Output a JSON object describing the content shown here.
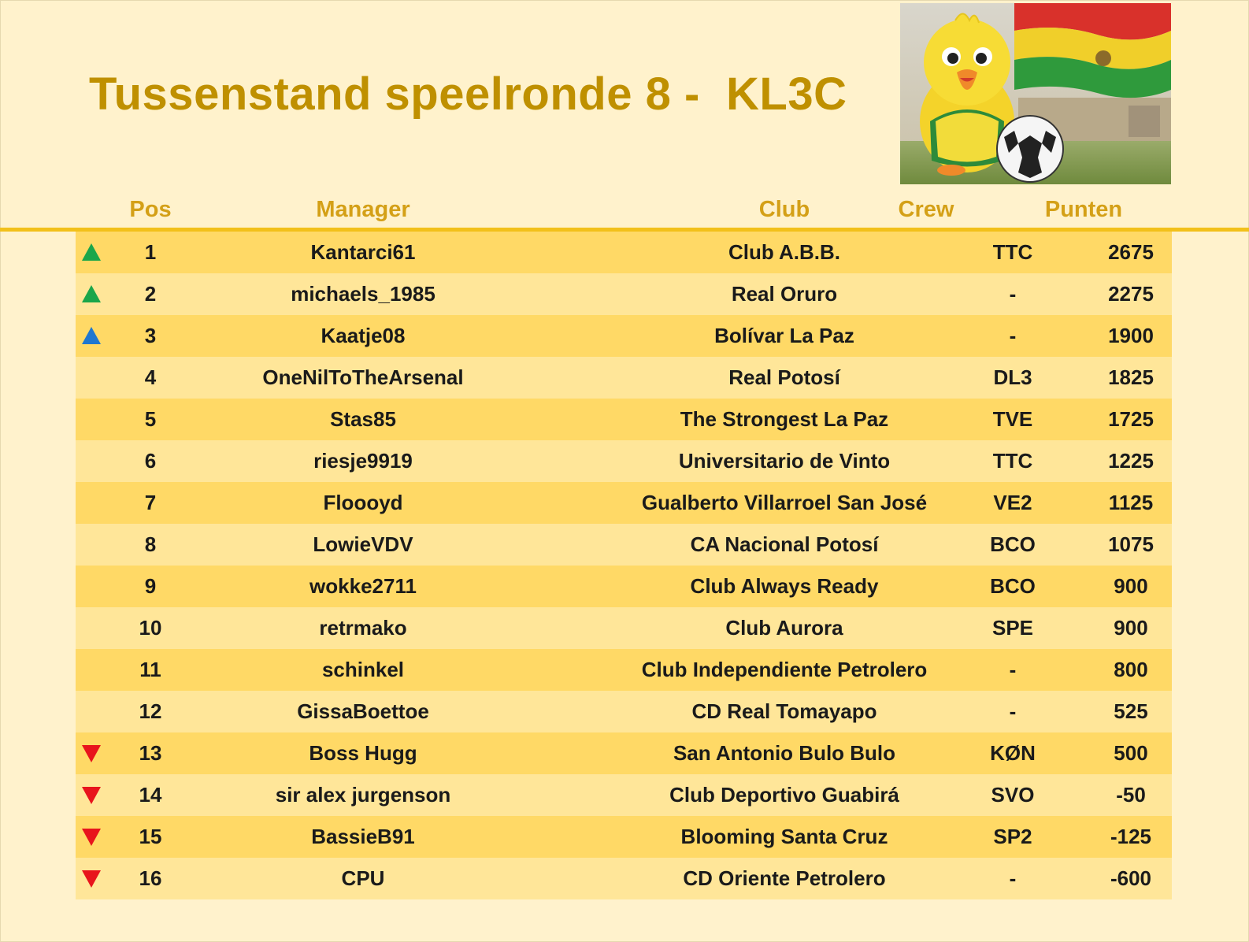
{
  "title": "Tussenstand speelronde 8 -  KL3C",
  "illustration": "bird-mascot-with-soccer-ball-and-bolivian-flag",
  "colors": {
    "title": "#bf9000",
    "header": "#d4a017",
    "row_odd": "#ffd966",
    "row_even": "#ffe699",
    "arrow_up": "#1aa64a",
    "arrow_up_alt": "#1f77d0",
    "arrow_down": "#e8141c"
  },
  "columns": {
    "pos": "Pos",
    "manager": "Manager",
    "club": "Club",
    "crew": "Crew",
    "points": "Punten"
  },
  "rows": [
    {
      "trend": "up-green",
      "pos": "1",
      "manager": "Kantarci61",
      "club": "Club A.B.B.",
      "crew": "TTC",
      "points": "2675"
    },
    {
      "trend": "up-green",
      "pos": "2",
      "manager": "michaels_1985",
      "club": "Real Oruro",
      "crew": "-",
      "points": "2275"
    },
    {
      "trend": "up-blue",
      "pos": "3",
      "manager": "Kaatje08",
      "club": "Bolívar La Paz",
      "crew": "-",
      "points": "1900"
    },
    {
      "trend": "none",
      "pos": "4",
      "manager": "OneNilToTheArsenal",
      "club": "Real Potosí",
      "crew": "DL3",
      "points": "1825"
    },
    {
      "trend": "none",
      "pos": "5",
      "manager": "Stas85",
      "club": "The Strongest La Paz",
      "crew": "TVE",
      "points": "1725"
    },
    {
      "trend": "none",
      "pos": "6",
      "manager": "riesje9919",
      "club": "Universitario de Vinto",
      "crew": "TTC",
      "points": "1225"
    },
    {
      "trend": "none",
      "pos": "7",
      "manager": "Floooyd",
      "club": "Gualberto Villarroel San José",
      "crew": "VE2",
      "points": "1125"
    },
    {
      "trend": "none",
      "pos": "8",
      "manager": "LowieVDV",
      "club": "CA Nacional Potosí",
      "crew": "BCO",
      "points": "1075"
    },
    {
      "trend": "none",
      "pos": "9",
      "manager": "wokke2711",
      "club": "Club Always Ready",
      "crew": "BCO",
      "points": "900"
    },
    {
      "trend": "none",
      "pos": "10",
      "manager": "retrmako",
      "club": "Club Aurora",
      "crew": "SPE",
      "points": "900"
    },
    {
      "trend": "none",
      "pos": "11",
      "manager": "schinkel",
      "club": "Club Independiente Petrolero",
      "crew": "-",
      "points": "800"
    },
    {
      "trend": "none",
      "pos": "12",
      "manager": "GissaBoettoe",
      "club": "CD Real Tomayapo",
      "crew": "-",
      "points": "525"
    },
    {
      "trend": "down-red",
      "pos": "13",
      "manager": "Boss Hugg",
      "club": "San Antonio Bulo Bulo",
      "crew": "KØN",
      "points": "500"
    },
    {
      "trend": "down-red",
      "pos": "14",
      "manager": "sir alex jurgenson",
      "club": "Club Deportivo Guabirá",
      "crew": "SVO",
      "points": "-50"
    },
    {
      "trend": "down-red",
      "pos": "15",
      "manager": "BassieB91",
      "club": "Blooming Santa Cruz",
      "crew": "SP2",
      "points": "-125"
    },
    {
      "trend": "down-red",
      "pos": "16",
      "manager": "CPU",
      "club": "CD Oriente Petrolero",
      "crew": "-",
      "points": "-600"
    }
  ]
}
